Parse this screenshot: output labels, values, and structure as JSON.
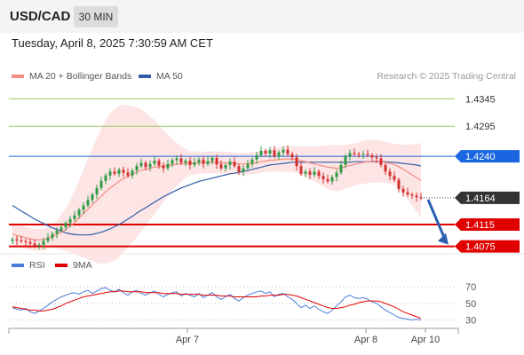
{
  "header": {
    "symbol": "USD/CAD",
    "timeframe": "30 MIN"
  },
  "timestamp": "Tuesday, April 8, 2025 7:30:59 AM CET",
  "legend": {
    "ma20_label": "MA 20 + Bollinger Bands",
    "ma50_label": "MA 50",
    "rsi_label": "RSI",
    "ma9_label": "9MA"
  },
  "credit": "Research © 2025 Trading Central",
  "colors": {
    "ma20": "#f28b82",
    "ma50": "#2f5da8",
    "bb_fill": "#fde0e0",
    "resistance_blue": "#1a66e0",
    "support_red": "#e00000",
    "target_green": "#9ccc65",
    "bull": "#2e9a44",
    "bear": "#d32f2f",
    "rsi": "#4a7ddb",
    "arrow": "#2a5fb0"
  },
  "chart_data": [
    {
      "type": "candlestick",
      "title": "USD/CAD",
      "timeframe": "30 MIN",
      "x_tick_labels": [
        "Apr 7",
        "Apr 8",
        "Apr 10"
      ],
      "ylim": [
        1.4055,
        1.437
      ],
      "levels": [
        {
          "label": "1.4345",
          "value": 1.4345,
          "kind": "target"
        },
        {
          "label": "1.4295",
          "value": 1.4295,
          "kind": "target"
        },
        {
          "label": "1.4240",
          "value": 1.424,
          "kind": "pivot"
        },
        {
          "label": "1.4164",
          "value": 1.4164,
          "kind": "last_price"
        },
        {
          "label": "1.4115",
          "value": 1.4115,
          "kind": "support"
        },
        {
          "label": "1.4075",
          "value": 1.4075,
          "kind": "support"
        }
      ],
      "close": [
        1.4088,
        1.4086,
        1.4085,
        1.4083,
        1.408,
        1.4076,
        1.4078,
        1.4085,
        1.4091,
        1.4098,
        1.4104,
        1.411,
        1.4118,
        1.4125,
        1.4132,
        1.4142,
        1.415,
        1.416,
        1.417,
        1.4182,
        1.4195,
        1.4205,
        1.4212,
        1.4208,
        1.4215,
        1.421,
        1.4205,
        1.4214,
        1.4222,
        1.4228,
        1.422,
        1.4226,
        1.4232,
        1.4223,
        1.4218,
        1.4226,
        1.4233,
        1.4236,
        1.4228,
        1.4232,
        1.4224,
        1.4229,
        1.4234,
        1.4226,
        1.4231,
        1.4237,
        1.4225,
        1.4218,
        1.4224,
        1.423,
        1.4222,
        1.4212,
        1.4218,
        1.4226,
        1.4234,
        1.4242,
        1.425,
        1.4245,
        1.4251,
        1.424,
        1.4247,
        1.4252,
        1.4244,
        1.4238,
        1.4222,
        1.4208,
        1.4212,
        1.4206,
        1.4212,
        1.4204,
        1.4198,
        1.4194,
        1.4202,
        1.421,
        1.4224,
        1.424,
        1.4246,
        1.4244,
        1.4243,
        1.4244,
        1.4242,
        1.4238,
        1.4236,
        1.4224,
        1.4212,
        1.4204,
        1.4197,
        1.418,
        1.4174,
        1.417,
        1.4168,
        1.4165,
        1.4164
      ],
      "series": [
        {
          "name": "MA 20",
          "values": [
            1.4098,
            1.4095,
            1.4093,
            1.4091,
            1.4089,
            1.4087,
            1.4087,
            1.4088,
            1.409,
            1.4093,
            1.4097,
            1.4101,
            1.4106,
            1.4112,
            1.4119,
            1.4127,
            1.4135,
            1.4143,
            1.4151,
            1.4159,
            1.4167,
            1.4175,
            1.4182,
            1.4188,
            1.4194,
            1.4199,
            1.4203,
            1.4207,
            1.4211,
            1.4214,
            1.4216,
            1.4218,
            1.422,
            1.4221,
            1.4222,
            1.4223,
            1.4224,
            1.4225,
            1.4226,
            1.4227,
            1.4227,
            1.4228,
            1.4228,
            1.4228,
            1.4229,
            1.4229,
            1.4229,
            1.4228,
            1.4228,
            1.4228,
            1.4227,
            1.4226,
            1.4226,
            1.4226,
            1.4227,
            1.4228,
            1.423,
            1.4231,
            1.4233,
            1.4233,
            1.4234,
            1.4235,
            1.4235,
            1.4235,
            1.4234,
            1.4232,
            1.423,
            1.4228,
            1.4226,
            1.4224,
            1.4222,
            1.422,
            1.4219,
            1.4218,
            1.4219,
            1.4221,
            1.4223,
            1.4225,
            1.4227,
            1.4229,
            1.423,
            1.4231,
            1.4231,
            1.423,
            1.4229,
            1.4227,
            1.4225,
            1.4221,
            1.4216,
            1.4211,
            1.4206,
            1.4201,
            1.4196
          ]
        },
        {
          "name": "MA 50",
          "values": [
            1.415,
            1.4145,
            1.414,
            1.4135,
            1.413,
            1.4125,
            1.4121,
            1.4117,
            1.4113,
            1.4109,
            1.4106,
            1.4103,
            1.41,
            1.4098,
            1.4097,
            1.4096,
            1.4096,
            1.4096,
            1.4097,
            1.4099,
            1.4101,
            1.4104,
            1.4107,
            1.4111,
            1.4115,
            1.412,
            1.4125,
            1.413,
            1.4136,
            1.4141,
            1.4146,
            1.4151,
            1.4156,
            1.4161,
            1.4166,
            1.417,
            1.4174,
            1.4178,
            1.4182,
            1.4185,
            1.4188,
            1.4191,
            1.4194,
            1.4196,
            1.4198,
            1.42,
            1.4202,
            1.4204,
            1.4206,
            1.4208,
            1.4209,
            1.4211,
            1.4212,
            1.4214,
            1.4216,
            1.4218,
            1.422,
            1.4222,
            1.4224,
            1.4225,
            1.4226,
            1.4227,
            1.4228,
            1.4229,
            1.4229,
            1.4229,
            1.4229,
            1.4229,
            1.4229,
            1.4229,
            1.4229,
            1.4229,
            1.4229,
            1.4229,
            1.4229,
            1.4229,
            1.4229,
            1.423,
            1.423,
            1.423,
            1.423,
            1.423,
            1.423,
            1.423,
            1.423,
            1.4229,
            1.4229,
            1.4228,
            1.4227,
            1.4226,
            1.4225,
            1.4224,
            1.4222
          ]
        }
      ]
    },
    {
      "type": "line",
      "title": "RSI",
      "ylim": [
        20,
        82
      ],
      "y_tick_labels": [
        "70",
        "50",
        "30"
      ],
      "levels": [
        70,
        50,
        30
      ],
      "series": [
        {
          "name": "RSI",
          "values": [
            45,
            43,
            42,
            44,
            40,
            38,
            41,
            44,
            48,
            52,
            55,
            58,
            60,
            62,
            63,
            61,
            64,
            66,
            62,
            65,
            68,
            69,
            66,
            64,
            67,
            63,
            60,
            64,
            66,
            62,
            60,
            63,
            65,
            61,
            58,
            61,
            63,
            64,
            59,
            62,
            60,
            58,
            62,
            57,
            60,
            63,
            58,
            55,
            58,
            61,
            56,
            53,
            57,
            60,
            62,
            64,
            65,
            62,
            64,
            58,
            61,
            62,
            58,
            55,
            50,
            45,
            48,
            44,
            47,
            43,
            40,
            38,
            42,
            47,
            52,
            58,
            60,
            57,
            56,
            57,
            55,
            52,
            50,
            46,
            42,
            39,
            36,
            33,
            32,
            31,
            30,
            31,
            30
          ]
        },
        {
          "name": "9MA",
          "values": [
            46,
            45,
            44,
            43,
            42,
            42,
            41,
            41,
            42,
            43,
            45,
            47,
            50,
            52,
            54,
            56,
            58,
            59,
            60,
            61,
            62,
            63,
            64,
            64,
            65,
            65,
            64,
            64,
            64,
            64,
            63,
            63,
            63,
            63,
            62,
            62,
            62,
            62,
            61,
            61,
            61,
            61,
            61,
            60,
            60,
            60,
            60,
            59,
            59,
            59,
            58,
            58,
            58,
            58,
            58,
            58,
            59,
            59,
            60,
            60,
            60,
            61,
            61,
            60,
            59,
            57,
            55,
            53,
            51,
            49,
            47,
            45,
            44,
            44,
            45,
            46,
            48,
            49,
            51,
            52,
            53,
            53,
            53,
            52,
            50,
            48,
            46,
            43,
            40,
            38,
            36,
            34,
            32
          ]
        }
      ]
    }
  ]
}
